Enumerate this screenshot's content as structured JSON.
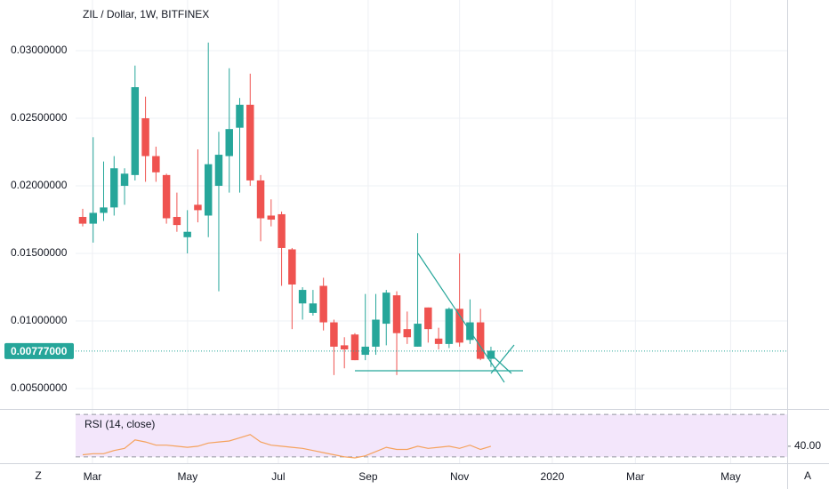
{
  "chart_data": [
    {
      "type": "candlestick",
      "title": "ZIL / Dollar, 1W, BITFINEX",
      "x": [
        0,
        1,
        2,
        3,
        4,
        5,
        6,
        7,
        8,
        9,
        10,
        11,
        12,
        13,
        14,
        15,
        16,
        17,
        18,
        19,
        20,
        21,
        22,
        23,
        24,
        25,
        26,
        27,
        28,
        29,
        30,
        31,
        32,
        33,
        34,
        35,
        36,
        37,
        38,
        39
      ],
      "open": [
        0.0177,
        0.0172,
        0.018,
        0.0184,
        0.02,
        0.0208,
        0.025,
        0.0222,
        0.0208,
        0.0177,
        0.0162,
        0.0186,
        0.0178,
        0.02,
        0.0222,
        0.0243,
        0.026,
        0.0204,
        0.0178,
        0.0179,
        0.0153,
        0.0113,
        0.0106,
        0.0126,
        0.0099,
        0.0082,
        0.009,
        0.0075,
        0.0081,
        0.0098,
        0.0119,
        0.0094,
        0.0081,
        0.011,
        0.0087,
        0.0083,
        0.0109,
        0.0086,
        0.0099,
        0.0072
      ],
      "high": [
        0.0183,
        0.0236,
        0.0218,
        0.0222,
        0.0213,
        0.0289,
        0.0266,
        0.0229,
        0.0209,
        0.0195,
        0.0182,
        0.0227,
        0.0306,
        0.024,
        0.0287,
        0.0265,
        0.0283,
        0.0208,
        0.019,
        0.0181,
        0.0154,
        0.0125,
        0.0123,
        0.0132,
        0.0101,
        0.0088,
        0.0091,
        0.012,
        0.012,
        0.0123,
        0.0122,
        0.0107,
        0.0165,
        0.011,
        0.0095,
        0.011,
        0.015,
        0.0116,
        0.0109,
        0.0081
      ],
      "low": [
        0.017,
        0.0158,
        0.0174,
        0.0178,
        0.0186,
        0.0204,
        0.0203,
        0.0203,
        0.0172,
        0.0166,
        0.015,
        0.0173,
        0.0162,
        0.0122,
        0.0195,
        0.0195,
        0.02,
        0.0159,
        0.017,
        0.0126,
        0.0094,
        0.0101,
        0.0104,
        0.0093,
        0.006,
        0.0065,
        0.0071,
        0.0071,
        0.0075,
        0.0082,
        0.006,
        0.0083,
        0.0081,
        0.0084,
        0.0079,
        0.008,
        0.0081,
        0.0083,
        0.0071,
        0.0066
      ],
      "close": [
        0.0172,
        0.018,
        0.0184,
        0.0213,
        0.0209,
        0.0273,
        0.0222,
        0.021,
        0.0176,
        0.0171,
        0.0166,
        0.0182,
        0.0216,
        0.0223,
        0.0242,
        0.026,
        0.0204,
        0.0176,
        0.0175,
        0.0154,
        0.0127,
        0.0123,
        0.0113,
        0.0099,
        0.0081,
        0.0079,
        0.0071,
        0.0081,
        0.0101,
        0.0121,
        0.0091,
        0.0088,
        0.0098,
        0.0094,
        0.0083,
        0.0109,
        0.0084,
        0.0099,
        0.0072,
        0.0078
      ],
      "up_color": "#26a69a",
      "down_color": "#ef5350",
      "xlim": [
        -7.9,
        67.3
      ],
      "xticks": [
        {
          "value": 0.93,
          "label": "Mar"
        },
        {
          "value": 10.02,
          "label": "May"
        },
        {
          "value": 18.69,
          "label": "Jul"
        },
        {
          "value": 27.27,
          "label": "Sep"
        },
        {
          "value": 36.0,
          "label": "Nov"
        },
        {
          "value": 44.86,
          "label": "2020"
        },
        {
          "value": 52.8,
          "label": "Mar"
        },
        {
          "value": 61.9,
          "label": "May"
        }
      ],
      "ylim": [
        0.00349,
        0.03375
      ],
      "yticks": [
        {
          "value": 0.005,
          "label": "0.00500000"
        },
        {
          "value": 0.01,
          "label": "0.01000000"
        },
        {
          "value": 0.015,
          "label": "0.01500000"
        },
        {
          "value": 0.02,
          "label": "0.02000000"
        },
        {
          "value": 0.025,
          "label": "0.02500000"
        },
        {
          "value": 0.03,
          "label": "0.03000000"
        }
      ],
      "grid": true,
      "last_price": {
        "value": 0.00777,
        "label": "0.00777000"
      }
    },
    {
      "type": "line",
      "title": "RSI (14, close)",
      "x": [
        0,
        1,
        2,
        3,
        4,
        5,
        6,
        7,
        8,
        9,
        10,
        11,
        12,
        13,
        14,
        15,
        16,
        17,
        18,
        19,
        20,
        21,
        22,
        23,
        24,
        25,
        26,
        27,
        28,
        29,
        30,
        31,
        32,
        33,
        34,
        35,
        36,
        37,
        38,
        39
      ],
      "values": [
        32,
        33,
        33,
        36,
        38,
        46,
        44,
        41,
        41,
        40,
        39,
        40,
        43,
        44,
        45,
        48,
        51,
        44,
        41,
        40,
        39,
        38,
        36,
        34,
        32,
        30,
        29,
        31,
        35,
        39,
        37,
        37,
        40,
        38,
        39,
        40,
        38,
        41,
        37,
        40
      ],
      "color": "#f5a25d",
      "ylim": [
        24,
        74.3
      ],
      "bands": [
        30,
        70
      ],
      "band_color": "#f3e6fb",
      "last_value": {
        "value": 40,
        "label": "40.00"
      }
    }
  ]
}
